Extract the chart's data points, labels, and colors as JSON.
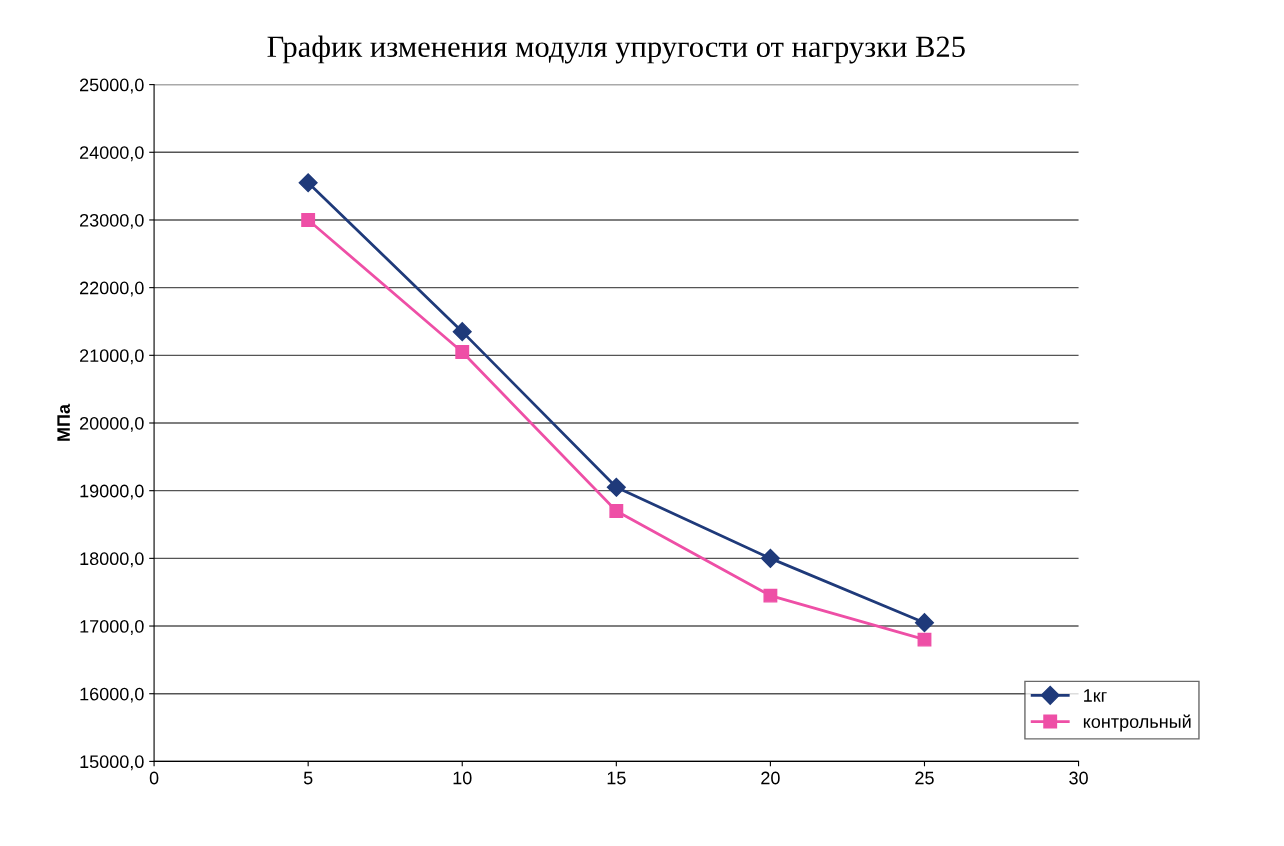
{
  "chart_data": {
    "type": "line",
    "title": "График изменения модуля упругости от нагрузки В25",
    "ylabel": "МПа",
    "x": [
      5,
      10,
      15,
      20,
      25
    ],
    "series": [
      {
        "name": "1кг",
        "color": "#1f3a7a",
        "marker": "diamond",
        "values": [
          23550,
          21350,
          19050,
          18000,
          17050
        ]
      },
      {
        "name": "контрольный",
        "color": "#ee4fa6",
        "marker": "square",
        "values": [
          23000,
          21050,
          18700,
          17450,
          16800
        ]
      }
    ],
    "xlim": [
      0,
      30
    ],
    "xticks": [
      0,
      5,
      10,
      15,
      20,
      25,
      30
    ],
    "ylim": [
      15000,
      25000
    ],
    "yticks": [
      {
        "value": 15000,
        "label": "15000,0"
      },
      {
        "value": 16000,
        "label": "16000,0"
      },
      {
        "value": 17000,
        "label": "17000,0"
      },
      {
        "value": 18000,
        "label": "18000,0"
      },
      {
        "value": 19000,
        "label": "19000,0"
      },
      {
        "value": 20000,
        "label": "20000,0"
      },
      {
        "value": 21000,
        "label": "21000,0"
      },
      {
        "value": 22000,
        "label": "22000,0"
      },
      {
        "value": 23000,
        "label": "23000,0"
      },
      {
        "value": 24000,
        "label": "24000,0"
      },
      {
        "value": 25000,
        "label": "25000,0"
      }
    ],
    "grid": "y",
    "legend": "bottom right",
    "line_style": "solid"
  }
}
